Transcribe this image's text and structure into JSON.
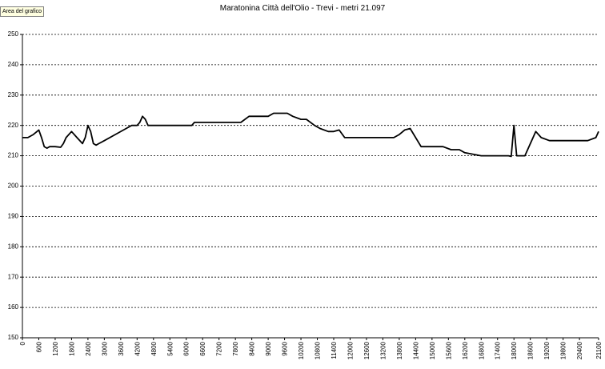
{
  "tooltip": {
    "label": "Area del grafico"
  },
  "chart_data": {
    "type": "line",
    "title": "Maratonina Città dell'Olio - Trevi - metri 21.097",
    "xlabel": "",
    "ylabel": "",
    "ylim": [
      150,
      250
    ],
    "yticks": [
      150,
      160,
      170,
      180,
      190,
      200,
      210,
      220,
      230,
      240,
      250
    ],
    "xlim": [
      0,
      21100
    ],
    "xticks": [
      0,
      600,
      1200,
      1800,
      2400,
      3000,
      3600,
      4200,
      4800,
      5400,
      6000,
      6600,
      7200,
      7800,
      8400,
      9000,
      9600,
      10200,
      10800,
      11400,
      12000,
      12600,
      13200,
      13800,
      14400,
      15000,
      15600,
      16200,
      16800,
      17400,
      18000,
      18600,
      19200,
      19800,
      20400,
      21100
    ],
    "grid": true,
    "series": [
      {
        "x": [
          0,
          200,
          400,
          600,
          700,
          800,
          900,
          1000,
          1200,
          1400,
          1500,
          1600,
          1800,
          2000,
          2200,
          2300,
          2400,
          2500,
          2600,
          2700,
          2800,
          3000,
          3400,
          3800,
          4000,
          4200,
          4300,
          4400,
          4500,
          4600,
          4700,
          4800,
          5000,
          5600,
          6200,
          6300,
          7000,
          7800,
          8000,
          8300,
          8600,
          9000,
          9200,
          9700,
          9900,
          10200,
          10400,
          10700,
          10900,
          11200,
          11400,
          11600,
          11800,
          12400,
          13000,
          13200,
          13600,
          13800,
          14000,
          14200,
          14600,
          15200,
          15400,
          15700,
          16000,
          16200,
          16800,
          17400,
          17600,
          17800,
          17900,
          18000,
          18100,
          18400,
          18800,
          19000,
          19300,
          19800,
          20500,
          20700,
          21000,
          21100
        ],
        "values": [
          216,
          216,
          217,
          218.5,
          216,
          213,
          212.5,
          213,
          213,
          212.8,
          214,
          216,
          218,
          216,
          214,
          216,
          220,
          218,
          214,
          213.5,
          214,
          215,
          217,
          219,
          220,
          220,
          221,
          223,
          222,
          220,
          220,
          220,
          220,
          220,
          220,
          221,
          221,
          221,
          221,
          223,
          223,
          223,
          224,
          224,
          223,
          222,
          222,
          220,
          219,
          218,
          218,
          218.5,
          216,
          216,
          216,
          216,
          216,
          217,
          218.5,
          219,
          213,
          213,
          213,
          212,
          212,
          211,
          210,
          210,
          210,
          210,
          209.8,
          220,
          210,
          210,
          218,
          216,
          215,
          215,
          215,
          215,
          216,
          218
        ]
      }
    ]
  }
}
